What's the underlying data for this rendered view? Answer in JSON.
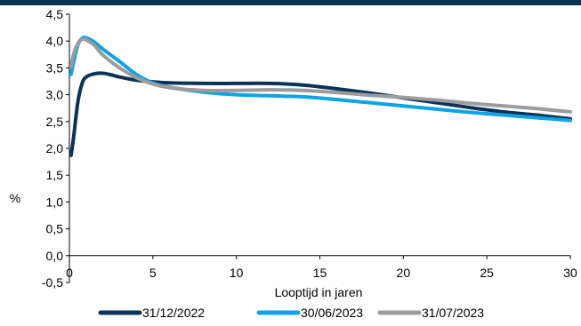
{
  "colors": {
    "top_bar": "#0c3055",
    "axis": "#000000"
  },
  "chart_data": {
    "type": "line",
    "title": "",
    "xlabel": "Looptijd in jaren",
    "ylabel": "%",
    "xlim": [
      0,
      30
    ],
    "ylim": [
      -0.5,
      4.5
    ],
    "x_ticks": [
      "0",
      "5",
      "10",
      "15",
      "20",
      "25",
      "30"
    ],
    "y_ticks": [
      "-0,5",
      "0,0",
      "0,5",
      "1,0",
      "1,5",
      "2,0",
      "2,5",
      "3,0",
      "3,5",
      "4,0",
      "4,5"
    ],
    "grid": false,
    "legend_position": "bottom",
    "series": [
      {
        "name": "31/12/2022",
        "color": "#0a3357",
        "x": [
          0.1,
          0.25,
          0.5,
          0.75,
          1,
          1.5,
          2,
          2.5,
          3,
          4,
          5,
          6,
          8,
          10,
          12,
          14,
          16,
          18,
          20,
          22,
          24,
          26,
          28,
          30
        ],
        "y": [
          1.87,
          2.2,
          2.85,
          3.2,
          3.33,
          3.39,
          3.4,
          3.37,
          3.33,
          3.27,
          3.24,
          3.22,
          3.21,
          3.21,
          3.21,
          3.18,
          3.11,
          3.03,
          2.94,
          2.85,
          2.76,
          2.68,
          2.62,
          2.55
        ]
      },
      {
        "name": "30/06/2023",
        "color": "#0ea3e2",
        "x": [
          0.1,
          0.25,
          0.5,
          0.75,
          1,
          1.5,
          2,
          3,
          4,
          5,
          6,
          8,
          10,
          12,
          14,
          16,
          18,
          20,
          22,
          24,
          26,
          28,
          30
        ],
        "y": [
          3.38,
          3.6,
          3.92,
          4.05,
          4.06,
          3.98,
          3.85,
          3.62,
          3.38,
          3.22,
          3.14,
          3.05,
          3.0,
          2.98,
          2.96,
          2.91,
          2.85,
          2.79,
          2.73,
          2.67,
          2.62,
          2.57,
          2.52
        ]
      },
      {
        "name": "31/07/2023",
        "color": "#9c9c9c",
        "x": [
          0.1,
          0.25,
          0.5,
          0.75,
          1,
          1.5,
          2,
          3,
          4,
          5,
          6,
          8,
          10,
          12,
          14,
          16,
          18,
          20,
          22,
          24,
          26,
          28,
          30
        ],
        "y": [
          3.52,
          3.75,
          3.95,
          4.03,
          4.02,
          3.92,
          3.74,
          3.5,
          3.32,
          3.2,
          3.13,
          3.08,
          3.08,
          3.09,
          3.08,
          3.04,
          2.99,
          2.95,
          2.9,
          2.84,
          2.79,
          2.74,
          2.68
        ]
      }
    ]
  }
}
